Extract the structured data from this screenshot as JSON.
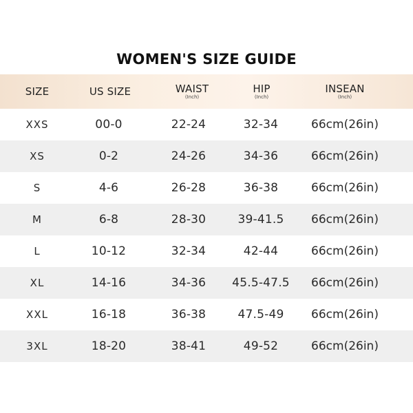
{
  "title": "WOMEN'S SIZE GUIDE",
  "colors": {
    "header_background": "#f9ebdd",
    "stripe_background": "#efefef",
    "text": "#2a2a2a"
  },
  "columns": [
    {
      "key": "size",
      "label": "SIZE",
      "unit": ""
    },
    {
      "key": "us_size",
      "label": "US SIZE",
      "unit": ""
    },
    {
      "key": "waist",
      "label": "WAIST",
      "unit": "(Inch)"
    },
    {
      "key": "hip",
      "label": "HIP",
      "unit": "(Inch)"
    },
    {
      "key": "insean",
      "label": "INSEAN",
      "unit": "(Inch)"
    }
  ],
  "rows": [
    {
      "size": "XXS",
      "us_size": "00-0",
      "waist": "22-24",
      "hip": "32-34",
      "insean": "66cm(26in)"
    },
    {
      "size": "XS",
      "us_size": "0-2",
      "waist": "24-26",
      "hip": "34-36",
      "insean": "66cm(26in)"
    },
    {
      "size": "S",
      "us_size": "4-6",
      "waist": "26-28",
      "hip": "36-38",
      "insean": "66cm(26in)"
    },
    {
      "size": "M",
      "us_size": "6-8",
      "waist": "28-30",
      "hip": "39-41.5",
      "insean": "66cm(26in)"
    },
    {
      "size": "L",
      "us_size": "10-12",
      "waist": "32-34",
      "hip": "42-44",
      "insean": "66cm(26in)"
    },
    {
      "size": "XL",
      "us_size": "14-16",
      "waist": "34-36",
      "hip": "45.5-47.5",
      "insean": "66cm(26in)"
    },
    {
      "size": "XXL",
      "us_size": "16-18",
      "waist": "36-38",
      "hip": "47.5-49",
      "insean": "66cm(26in)"
    },
    {
      "size": "3XL",
      "us_size": "18-20",
      "waist": "38-41",
      "hip": "49-52",
      "insean": "66cm(26in)"
    }
  ]
}
